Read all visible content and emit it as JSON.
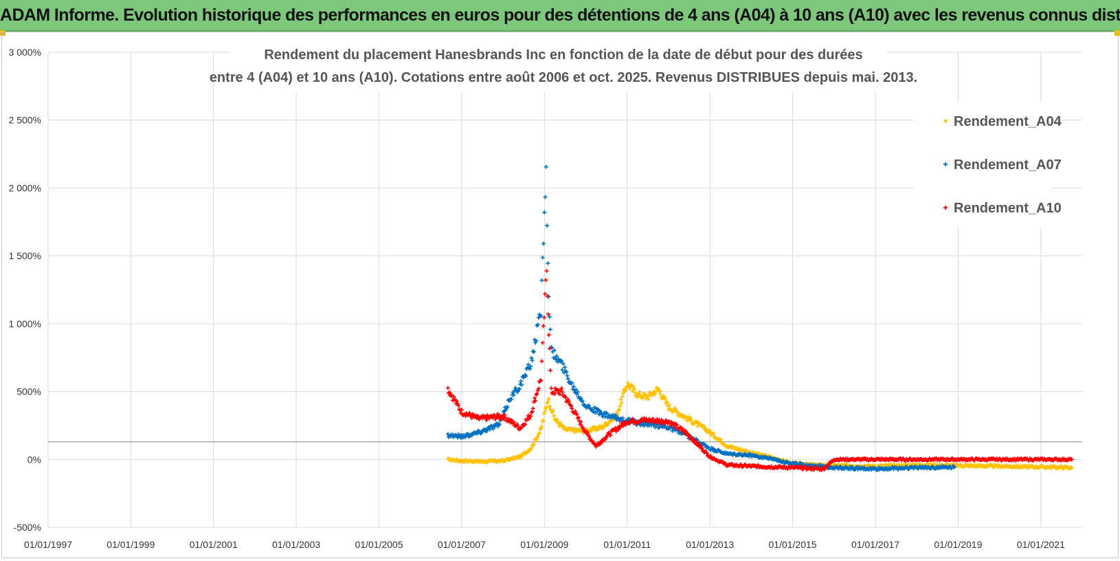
{
  "header": {
    "title": "ADAM Informe. Evolution historique des performances en euros pour des détentions de 4 ans (A04) à 10 ans (A10) avec les revenus connus distribués"
  },
  "colors": {
    "banner": "#7cc77c",
    "A04": "#ffc000",
    "A07": "#0070c0",
    "A10": "#ff0000",
    "grid": "#d9d9d9"
  },
  "chart_data": {
    "type": "scatter",
    "title": "Rendement du placement Hanesbrands Inc en fonction de la date de début pour des durées",
    "subtitle": "entre 4 (A04) et 10 ans (A10).  Cotations entre août 2006 et oct. 2025.  Revenus DISTRIBUES depuis mai. 2013.",
    "x_tick_labels": [
      "01/01/1997",
      "01/01/1999",
      "01/01/2001",
      "01/01/2003",
      "01/01/2005",
      "01/01/2007",
      "01/01/2009",
      "01/01/2011",
      "01/01/2013",
      "01/01/2015",
      "01/01/2017",
      "01/01/2019",
      "01/01/2021"
    ],
    "y_tick_labels": [
      "3 000%",
      "2 500%",
      "2 000%",
      "1 500%",
      "1 000%",
      "500%",
      "0%",
      "-500%"
    ],
    "xlim": [
      "1997-01-01",
      "2022-01-01"
    ],
    "ylim": [
      -500,
      3000
    ],
    "grid": true,
    "legend": "right",
    "reference_line_y": 130,
    "series": [
      {
        "name": "Rendement_A04",
        "color": "#ffc000",
        "points": [
          [
            "2006-09-01",
            0
          ],
          [
            "2007-01-01",
            -10
          ],
          [
            "2007-07-01",
            -15
          ],
          [
            "2008-01-01",
            -10
          ],
          [
            "2008-06-01",
            20
          ],
          [
            "2008-09-01",
            80
          ],
          [
            "2008-12-01",
            220
          ],
          [
            "2009-02-01",
            450
          ],
          [
            "2009-04-01",
            300
          ],
          [
            "2009-07-01",
            220
          ],
          [
            "2010-01-01",
            210
          ],
          [
            "2010-06-01",
            240
          ],
          [
            "2010-10-01",
            330
          ],
          [
            "2011-01-01",
            560
          ],
          [
            "2011-04-01",
            480
          ],
          [
            "2011-07-01",
            460
          ],
          [
            "2011-10-01",
            520
          ],
          [
            "2012-01-01",
            390
          ],
          [
            "2012-06-01",
            310
          ],
          [
            "2012-12-01",
            220
          ],
          [
            "2013-06-01",
            100
          ],
          [
            "2014-01-01",
            50
          ],
          [
            "2014-06-01",
            20
          ],
          [
            "2015-01-01",
            -30
          ],
          [
            "2015-07-01",
            -40
          ],
          [
            "2016-01-01",
            -45
          ],
          [
            "2017-01-01",
            -50
          ],
          [
            "2018-01-01",
            -40
          ],
          [
            "2019-01-01",
            -45
          ],
          [
            "2020-01-01",
            -50
          ],
          [
            "2021-01-01",
            -55
          ],
          [
            "2021-10-01",
            -60
          ]
        ]
      },
      {
        "name": "Rendement_A07",
        "color": "#0070c0",
        "points": [
          [
            "2006-09-01",
            180
          ],
          [
            "2007-01-01",
            170
          ],
          [
            "2007-06-01",
            200
          ],
          [
            "2007-12-01",
            260
          ],
          [
            "2008-03-01",
            450
          ],
          [
            "2008-06-01",
            550
          ],
          [
            "2008-09-01",
            700
          ],
          [
            "2008-12-01",
            1100
          ],
          [
            "2009-01-15",
            2200
          ],
          [
            "2009-02-01",
            1400
          ],
          [
            "2009-03-01",
            800
          ],
          [
            "2009-06-01",
            700
          ],
          [
            "2009-09-01",
            550
          ],
          [
            "2010-01-01",
            400
          ],
          [
            "2010-06-01",
            330
          ],
          [
            "2010-12-01",
            290
          ],
          [
            "2011-06-01",
            260
          ],
          [
            "2012-01-01",
            240
          ],
          [
            "2012-06-01",
            180
          ],
          [
            "2013-01-01",
            80
          ],
          [
            "2013-06-01",
            40
          ],
          [
            "2014-01-01",
            30
          ],
          [
            "2014-06-01",
            10
          ],
          [
            "2015-01-01",
            -30
          ],
          [
            "2016-01-01",
            -60
          ],
          [
            "2017-01-01",
            -70
          ],
          [
            "2018-01-01",
            -60
          ],
          [
            "2018-12-01",
            -55
          ]
        ]
      },
      {
        "name": "Rendement_A10",
        "color": "#ff0000",
        "points": [
          [
            "2006-09-01",
            520
          ],
          [
            "2007-01-01",
            350
          ],
          [
            "2007-06-01",
            300
          ],
          [
            "2008-01-01",
            320
          ],
          [
            "2008-06-01",
            230
          ],
          [
            "2008-09-01",
            330
          ],
          [
            "2008-12-01",
            600
          ],
          [
            "2009-01-20",
            1400
          ],
          [
            "2009-03-01",
            500
          ],
          [
            "2009-06-01",
            500
          ],
          [
            "2009-09-01",
            380
          ],
          [
            "2010-01-01",
            200
          ],
          [
            "2010-04-01",
            100
          ],
          [
            "2010-08-01",
            190
          ],
          [
            "2011-01-01",
            280
          ],
          [
            "2011-06-01",
            290
          ],
          [
            "2012-01-01",
            280
          ],
          [
            "2012-06-01",
            200
          ],
          [
            "2013-01-01",
            20
          ],
          [
            "2013-06-01",
            -40
          ],
          [
            "2014-01-01",
            -50
          ],
          [
            "2015-01-01",
            -60
          ],
          [
            "2015-10-01",
            -70
          ],
          [
            "2016-01-01",
            0
          ],
          [
            "2017-01-01",
            0
          ],
          [
            "2018-01-01",
            0
          ],
          [
            "2019-01-01",
            0
          ],
          [
            "2020-01-01",
            0
          ],
          [
            "2021-01-01",
            0
          ],
          [
            "2021-10-01",
            0
          ]
        ]
      }
    ]
  }
}
